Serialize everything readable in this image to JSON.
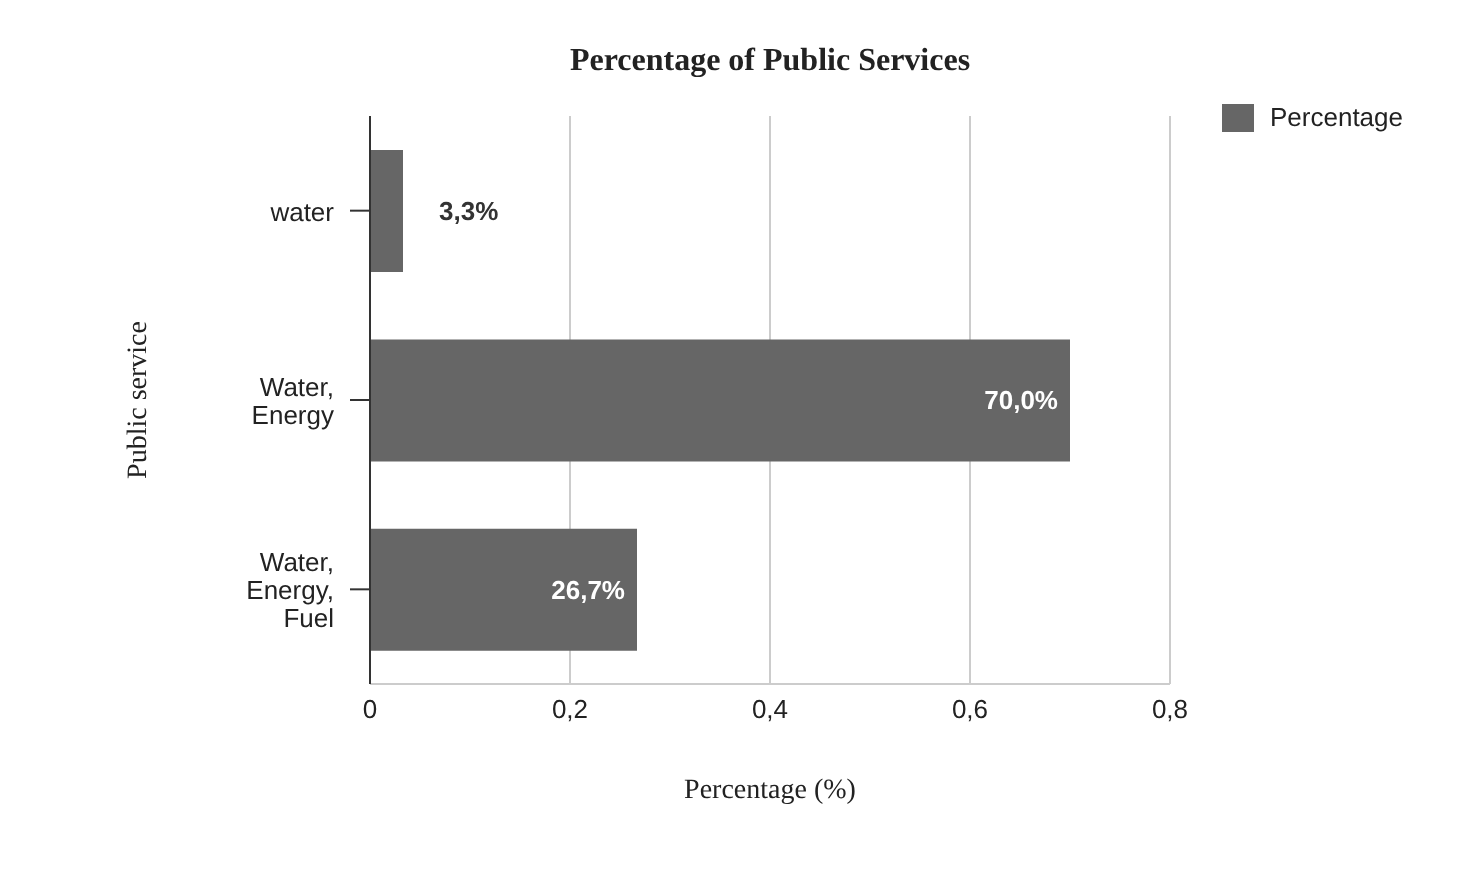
{
  "chart_data": {
    "type": "bar",
    "orientation": "horizontal",
    "title": "Percentage of Public Services",
    "xlabel": "Percentage (%)",
    "ylabel": "Public service",
    "categories": [
      "water",
      "Water, Energy",
      "Water, Energy, Fuel"
    ],
    "series": [
      {
        "name": "Percentage",
        "color": "#666666",
        "values": [
          0.033,
          0.7,
          0.267
        ],
        "value_labels": [
          "3,3%",
          "70,0%",
          "26,7%"
        ]
      }
    ],
    "xlim": [
      0,
      0.8
    ],
    "xticks": [
      0,
      {
        "value": 0.2,
        "label": "0,2"
      },
      {
        "value": 0.4,
        "label": "0,4"
      },
      {
        "value": 0.6,
        "label": "0,6"
      },
      {
        "value": 0.8,
        "label": "0,8"
      }
    ],
    "grid": "x",
    "legend": "top right"
  }
}
